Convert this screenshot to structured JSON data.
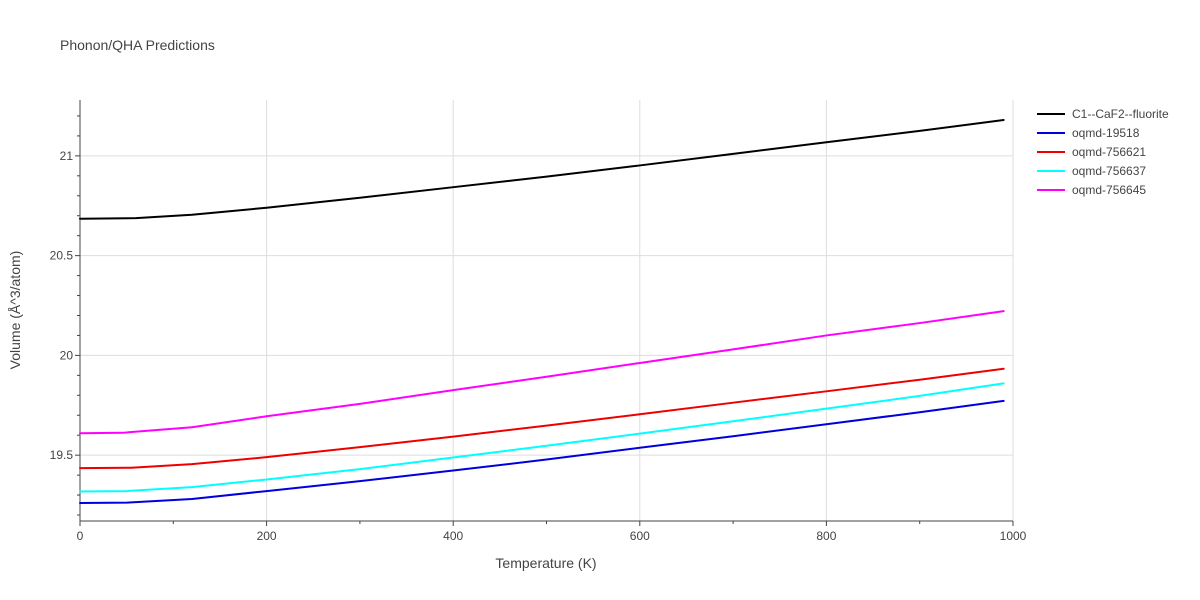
{
  "chart_data": {
    "type": "line",
    "title": "Phonon/QHA Predictions",
    "xlabel": "Temperature (K)",
    "ylabel": "Volume (Å^3/atom)",
    "xlim": [
      0,
      1000
    ],
    "ylim": [
      19.17,
      21.28
    ],
    "xticks": [
      0,
      200,
      400,
      600,
      800,
      1000
    ],
    "yticks": [
      19.5,
      20,
      20.5,
      21
    ],
    "grid": true,
    "legend_position": "top-right",
    "series": [
      {
        "name": "C1--CaF2--fluorite",
        "color": "#000000",
        "x": [
          0,
          60,
          120,
          200,
          300,
          400,
          500,
          600,
          700,
          800,
          900,
          990
        ],
        "y": [
          20.685,
          20.688,
          20.705,
          20.74,
          20.79,
          20.843,
          20.896,
          20.952,
          21.01,
          21.068,
          21.125,
          21.18
        ]
      },
      {
        "name": "oqmd-19518",
        "color": "#0000dd",
        "x": [
          0,
          50,
          120,
          200,
          300,
          400,
          500,
          600,
          700,
          800,
          900,
          990
        ],
        "y": [
          19.26,
          19.262,
          19.28,
          19.32,
          19.37,
          19.423,
          19.478,
          19.537,
          19.595,
          19.655,
          19.715,
          19.772
        ]
      },
      {
        "name": "oqmd-756621",
        "color": "#ee0000",
        "x": [
          0,
          55,
          120,
          200,
          300,
          400,
          500,
          600,
          700,
          800,
          900,
          990
        ],
        "y": [
          19.435,
          19.437,
          19.455,
          19.49,
          19.54,
          19.593,
          19.648,
          19.705,
          19.763,
          19.82,
          19.878,
          19.933
        ]
      },
      {
        "name": "oqmd-756637",
        "color": "#00ffff",
        "x": [
          0,
          50,
          120,
          200,
          300,
          400,
          500,
          600,
          700,
          800,
          900,
          990
        ],
        "y": [
          19.318,
          19.32,
          19.34,
          19.378,
          19.43,
          19.488,
          19.547,
          19.608,
          19.67,
          19.733,
          19.797,
          19.86
        ]
      },
      {
        "name": "oqmd-756645",
        "color": "#ff00ff",
        "x": [
          0,
          45,
          120,
          200,
          300,
          400,
          500,
          600,
          700,
          800,
          900,
          990
        ],
        "y": [
          19.61,
          19.612,
          19.64,
          19.695,
          19.757,
          19.826,
          19.893,
          19.962,
          20.03,
          20.1,
          20.162,
          20.222
        ]
      }
    ]
  }
}
